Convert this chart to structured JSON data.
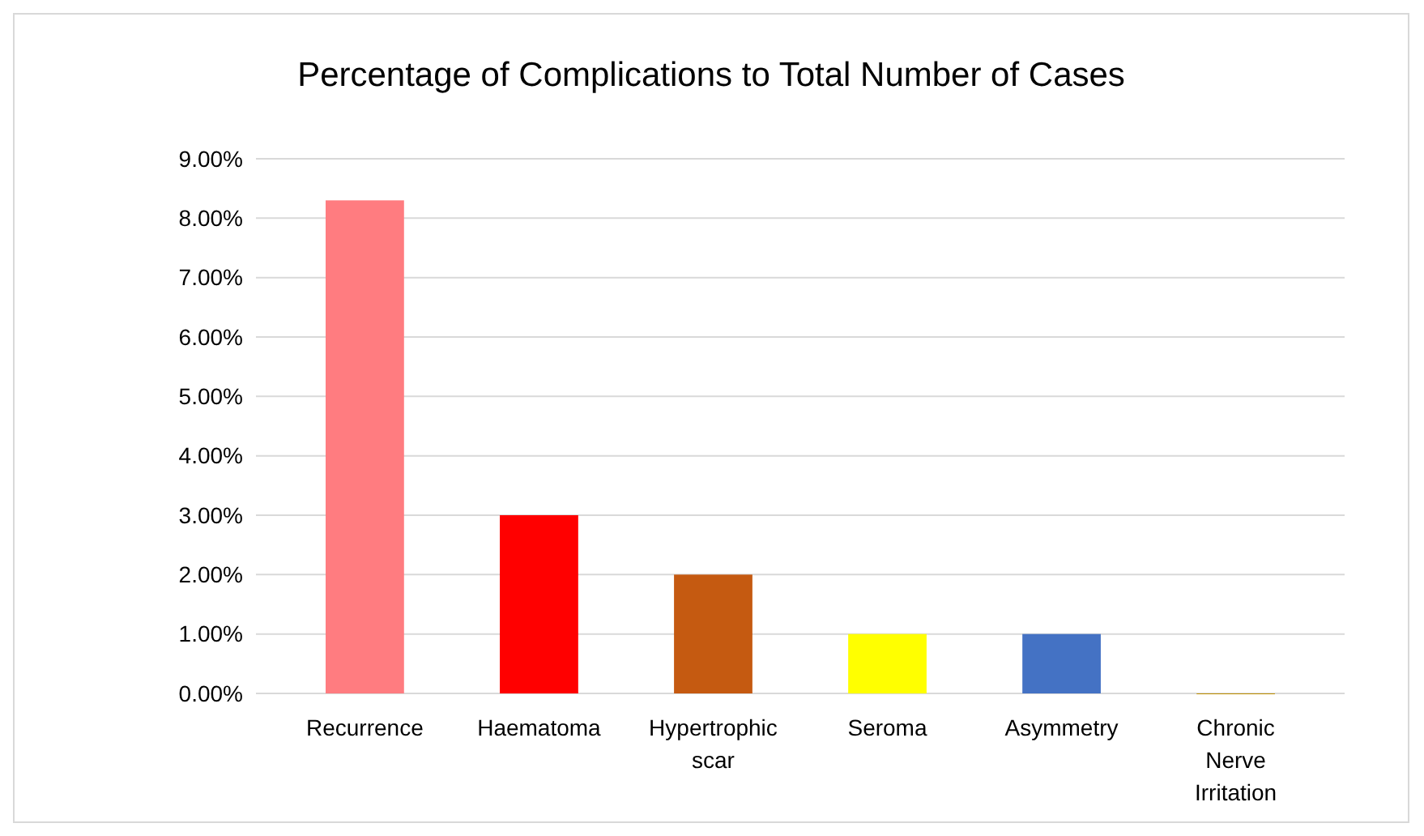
{
  "chart_data": {
    "type": "bar",
    "title": "Percentage of Complications to Total Number of Cases",
    "categories": [
      "Recurrence",
      "Haematoma",
      "Hypertrophic scar",
      "Seroma",
      "Asymmetry",
      "Chronic Nerve Irritation"
    ],
    "values": [
      8.3,
      3,
      2,
      1,
      1,
      0
    ],
    "colors": [
      "#ff7c80",
      "#ff0000",
      "#c55a11",
      "#ffff00",
      "#4472c4",
      "#bf9000"
    ],
    "ylim": [
      0,
      9
    ],
    "yticks": [
      {
        "value": 0,
        "label": "0.00%"
      },
      {
        "value": 1,
        "label": "1.00%"
      },
      {
        "value": 2,
        "label": "2.00%"
      },
      {
        "value": 3,
        "label": "3.00%"
      },
      {
        "value": 4,
        "label": "4.00%"
      },
      {
        "value": 5,
        "label": "5.00%"
      },
      {
        "value": 6,
        "label": "6.00%"
      },
      {
        "value": 7,
        "label": "7.00%"
      },
      {
        "value": 8,
        "label": "8.00%"
      },
      {
        "value": 9,
        "label": "9.00%"
      }
    ],
    "grid": "y"
  }
}
